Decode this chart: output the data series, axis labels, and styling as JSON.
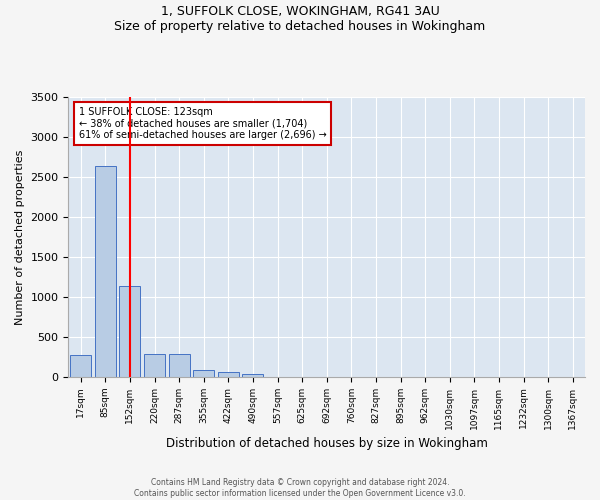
{
  "title_line1": "1, SUFFOLK CLOSE, WOKINGHAM, RG41 3AU",
  "title_line2": "Size of property relative to detached houses in Wokingham",
  "xlabel": "Distribution of detached houses by size in Wokingham",
  "ylabel": "Number of detached properties",
  "bin_labels": [
    "17sqm",
    "85sqm",
    "152sqm",
    "220sqm",
    "287sqm",
    "355sqm",
    "422sqm",
    "490sqm",
    "557sqm",
    "625sqm",
    "692sqm",
    "760sqm",
    "827sqm",
    "895sqm",
    "962sqm",
    "1030sqm",
    "1097sqm",
    "1165sqm",
    "1232sqm",
    "1300sqm",
    "1367sqm"
  ],
  "bar_values": [
    270,
    2640,
    1140,
    280,
    280,
    90,
    60,
    35,
    0,
    0,
    0,
    0,
    0,
    0,
    0,
    0,
    0,
    0,
    0,
    0,
    0
  ],
  "bar_color": "#b8cce4",
  "bar_edge_color": "#4472c4",
  "background_color": "#dce6f1",
  "grid_color": "#ffffff",
  "red_line_x": 2,
  "annotation_text": "1 SUFFOLK CLOSE: 123sqm\n← 38% of detached houses are smaller (1,704)\n61% of semi-detached houses are larger (2,696) →",
  "annotation_box_color": "#ffffff",
  "annotation_box_edge": "#cc0000",
  "ylim": [
    0,
    3500
  ],
  "yticks": [
    0,
    500,
    1000,
    1500,
    2000,
    2500,
    3000,
    3500
  ],
  "footer_line1": "Contains HM Land Registry data © Crown copyright and database right 2024.",
  "footer_line2": "Contains public sector information licensed under the Open Government Licence v3.0."
}
